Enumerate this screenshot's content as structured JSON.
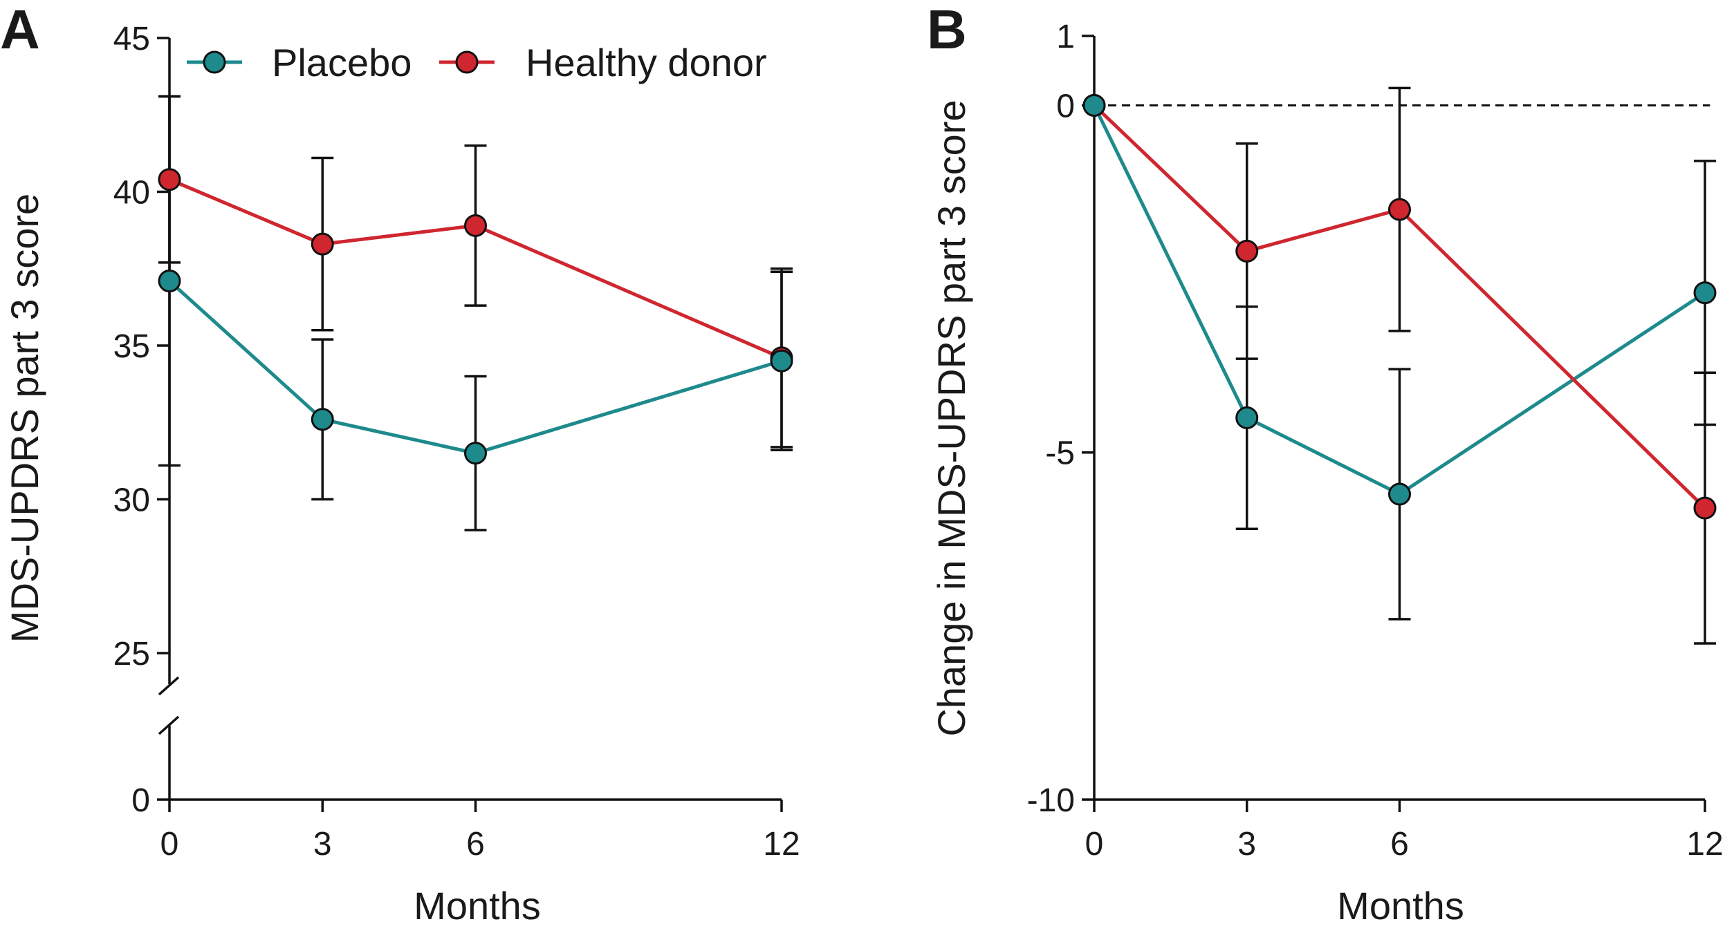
{
  "legend": {
    "series": [
      {
        "name": "Placebo",
        "color": "#1e8a8c"
      },
      {
        "name": "Healthy donor",
        "color": "#d0262f"
      }
    ]
  },
  "chart_data": [
    {
      "panel": "A",
      "type": "line",
      "title": "",
      "xlabel": "Months",
      "ylabel": "MDS-UPDRS part 3 score",
      "x": [
        0,
        3,
        6,
        12
      ],
      "x_ticks": [
        "0",
        "3",
        "6",
        "12"
      ],
      "y_ticks": [
        "45",
        "40",
        "35",
        "30",
        "25",
        "0"
      ],
      "ylim_upper": [
        25,
        45
      ],
      "ylim_lower": [
        0,
        0
      ],
      "axis_break": true,
      "grid": false,
      "legend_position": "top",
      "series": [
        {
          "name": "Placebo",
          "color": "#1e8a8c",
          "values": [
            37.1,
            32.6,
            31.5,
            34.5
          ],
          "err": [
            6.0,
            2.6,
            2.5,
            2.9
          ]
        },
        {
          "name": "Healthy donor",
          "color": "#d0262f",
          "values": [
            40.4,
            38.3,
            38.9,
            34.6
          ],
          "err": [
            2.7,
            2.8,
            2.6,
            2.9
          ]
        }
      ]
    },
    {
      "panel": "B",
      "type": "line",
      "title": "",
      "xlabel": "Months",
      "ylabel": "Change in MDS-UPDRS part 3 score",
      "x": [
        0,
        3,
        6,
        12
      ],
      "x_ticks": [
        "0",
        "3",
        "6",
        "12"
      ],
      "y_ticks": [
        "1",
        "0",
        "-5",
        "-10"
      ],
      "ylim": [
        -10,
        1
      ],
      "reference_line": 0,
      "grid": false,
      "series": [
        {
          "name": "Placebo",
          "color": "#1e8a8c",
          "values": [
            0,
            -4.5,
            -5.6,
            -2.7
          ],
          "err": [
            0,
            1.6,
            1.8,
            1.9
          ]
        },
        {
          "name": "Healthy donor",
          "color": "#d0262f",
          "values": [
            0,
            -2.1,
            -1.5,
            -5.8
          ],
          "err": [
            0,
            1.55,
            1.75,
            1.95
          ]
        }
      ]
    }
  ]
}
